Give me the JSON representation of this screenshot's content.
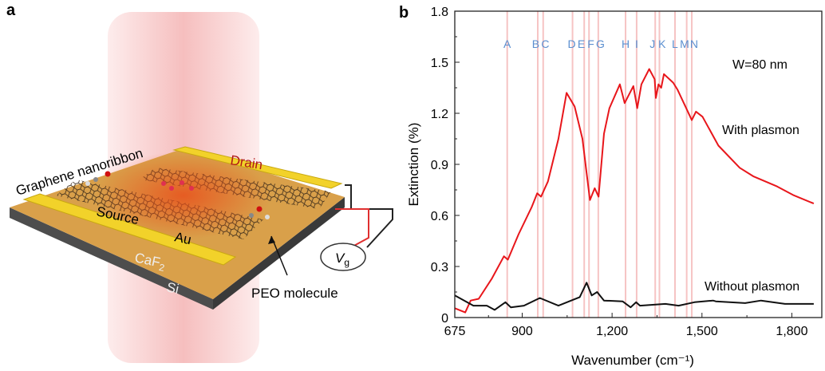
{
  "panel_a": {
    "panel_label": "a",
    "labels": {
      "graphene": "Graphene nanoribbon",
      "drain": "Drain",
      "source": "Source",
      "au": "Au",
      "caf2": "CaF",
      "caf2_sub": "2",
      "si": "Si",
      "peo": "PEO molecule",
      "vg": "V",
      "vg_sub": "g"
    },
    "colors": {
      "beam": "#f7c6c6",
      "gold": "#f2d22a",
      "substrate_top": "#d9a04a",
      "slab": "#555555",
      "graphene_hot": "#e02020"
    }
  },
  "chart_data": {
    "type": "line",
    "panel_label": "b",
    "xlabel": "Wavenumber (cm⁻¹)",
    "ylabel": "Extinction (%)",
    "xlim": [
      675,
      1900
    ],
    "ylim": [
      0,
      1.8
    ],
    "xticks": [
      675,
      900,
      1200,
      1500,
      1800
    ],
    "xtick_labels": [
      "675",
      "900",
      "1,200",
      "1,500",
      "1,800"
    ],
    "yticks": [
      0,
      0.3,
      0.6,
      0.9,
      1.2,
      1.5,
      1.8
    ],
    "ytick_labels": [
      "0",
      "0.3",
      "0.6",
      "0.9",
      "1.2",
      "1.5",
      "1.8"
    ],
    "grid": false,
    "annotation": "W=80 nm",
    "vibrational_modes": [
      {
        "label": "A",
        "x": 850
      },
      {
        "label": "B",
        "x": 952
      },
      {
        "label": "C",
        "x": 970
      },
      {
        "label": "D",
        "x": 1068
      },
      {
        "label": "E",
        "x": 1107
      },
      {
        "label": "F",
        "x": 1123
      },
      {
        "label": "G",
        "x": 1154
      },
      {
        "label": "H",
        "x": 1245
      },
      {
        "label": "I",
        "x": 1282
      },
      {
        "label": "J",
        "x": 1344
      },
      {
        "label": "K",
        "x": 1358
      },
      {
        "label": "L",
        "x": 1410
      },
      {
        "label": "M",
        "x": 1449
      },
      {
        "label": "N",
        "x": 1466
      }
    ],
    "series": [
      {
        "name": "With plasmon",
        "color": "#e8161b",
        "x": [
          675,
          710,
          728,
          755,
          799,
          839,
          852,
          888,
          932,
          950,
          963,
          986,
          1021,
          1048,
          1075,
          1101,
          1115,
          1126,
          1142,
          1155,
          1173,
          1191,
          1226,
          1242,
          1271,
          1284,
          1298,
          1324,
          1342,
          1346,
          1355,
          1364,
          1373,
          1404,
          1418,
          1453,
          1466,
          1480,
          1502,
          1555,
          1626,
          1671,
          1751,
          1804,
          1873
        ],
        "y": [
          0.055,
          0.03,
          0.1,
          0.11,
          0.23,
          0.36,
          0.34,
          0.49,
          0.65,
          0.73,
          0.71,
          0.8,
          1.05,
          1.32,
          1.24,
          1.05,
          0.85,
          0.69,
          0.76,
          0.71,
          1.08,
          1.23,
          1.37,
          1.26,
          1.36,
          1.23,
          1.37,
          1.46,
          1.4,
          1.29,
          1.37,
          1.35,
          1.43,
          1.38,
          1.34,
          1.21,
          1.16,
          1.21,
          1.18,
          1.01,
          0.88,
          0.83,
          0.77,
          0.72,
          0.67
        ]
      },
      {
        "name": "Without plasmon",
        "color": "#111111",
        "x": [
          675,
          737,
          782,
          808,
          844,
          862,
          906,
          959,
          1021,
          1057,
          1092,
          1115,
          1132,
          1150,
          1173,
          1235,
          1262,
          1280,
          1293,
          1378,
          1422,
          1475,
          1537,
          1546,
          1644,
          1697,
          1777,
          1873
        ],
        "y": [
          0.13,
          0.07,
          0.07,
          0.045,
          0.09,
          0.06,
          0.07,
          0.115,
          0.07,
          0.095,
          0.12,
          0.205,
          0.13,
          0.15,
          0.1,
          0.095,
          0.06,
          0.09,
          0.07,
          0.08,
          0.07,
          0.09,
          0.1,
          0.095,
          0.085,
          0.1,
          0.08,
          0.08
        ]
      }
    ]
  }
}
